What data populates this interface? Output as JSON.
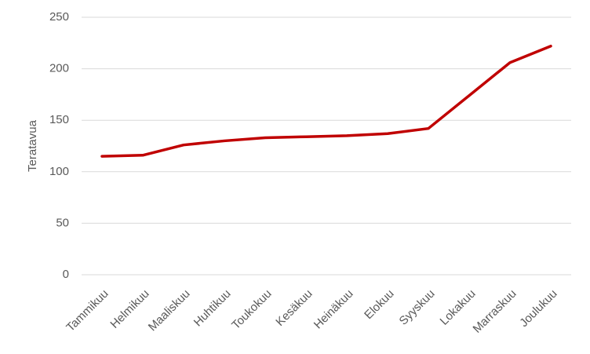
{
  "chart_data": {
    "type": "line",
    "y_label": "Teratavua",
    "categories": [
      "Tammikuu",
      "Helmikuu",
      "Maaliskuu",
      "Huhtikuu",
      "Toukokuu",
      "Kesäkuu",
      "Heinäkuu",
      "Elokuu",
      "Syyskuu",
      "Lokakuu",
      "Marraskuu",
      "Joulukuu"
    ],
    "series": [
      {
        "color": "#c00000",
        "values": [
          115,
          116,
          126,
          130,
          133,
          134,
          135,
          137,
          142,
          174,
          206,
          222
        ]
      }
    ],
    "ylim": [
      0,
      250
    ],
    "yticks": [
      0,
      50,
      100,
      150,
      200,
      250
    ],
    "grid": true
  }
}
